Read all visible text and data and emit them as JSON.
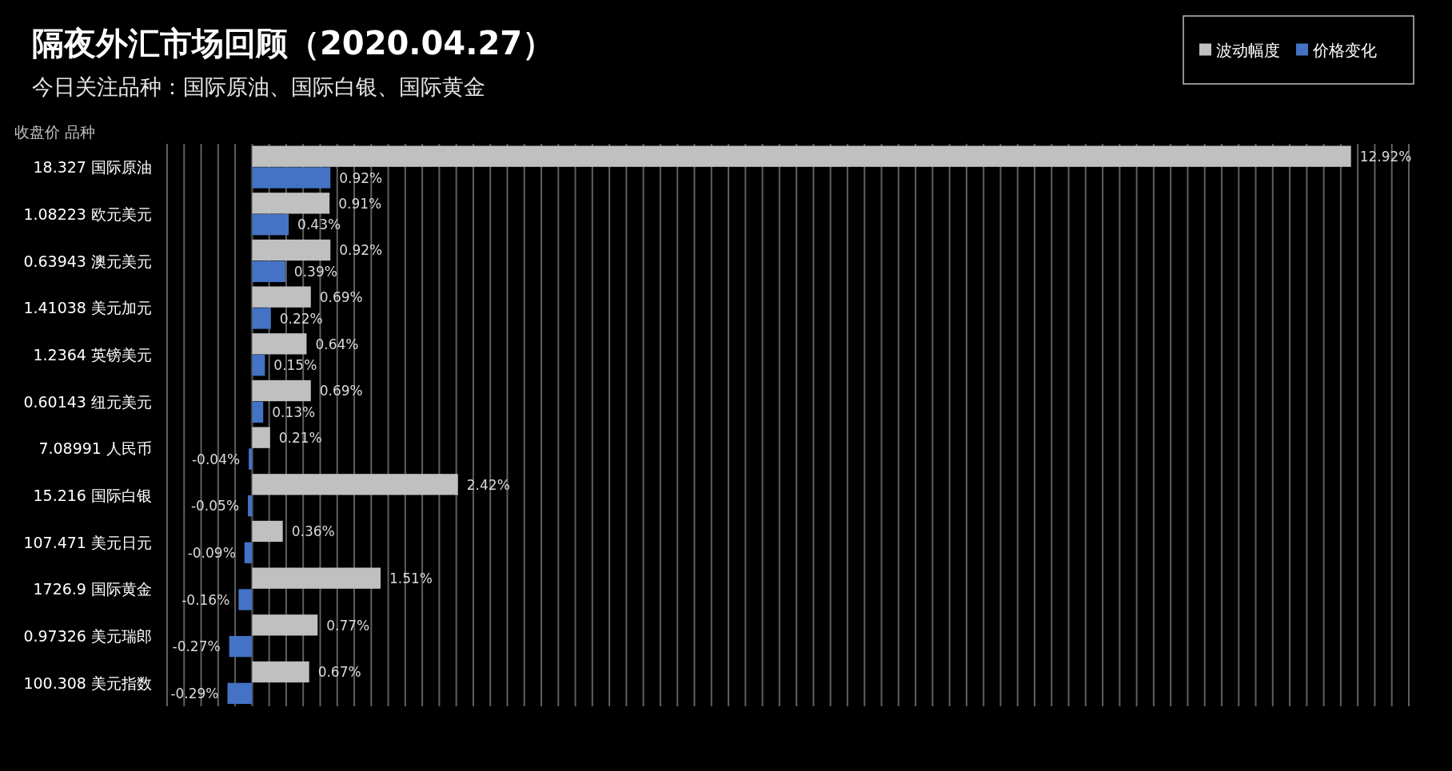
{
  "chart_data": {
    "type": "bar",
    "orientation": "horizontal",
    "title": "隔夜外汇市场回顾（2020.04.27）",
    "subtitle": "今日关注品种：国际原油、国际白银、国际黄金",
    "ylabel": "收盘价  品种",
    "categories": [
      "18.327 国际原油",
      "1.08223 欧元美元",
      "0.63943 澳元美元",
      "1.41038 美元加元",
      "1.2364 英镑美元",
      "0.60143 纽元美元",
      "7.08991 人民币",
      "15.216 国际白银",
      "107.471 美元日元",
      "1726.9 国际黄金",
      "0.97326 美元瑞郎",
      "100.308 美元指数"
    ],
    "series": [
      {
        "name": "波动幅度",
        "color": "#c0c0c0",
        "values": [
          12.92,
          0.91,
          0.92,
          0.69,
          0.64,
          0.69,
          0.21,
          2.42,
          0.36,
          1.51,
          0.77,
          0.67
        ],
        "value_labels": [
          "12.92%",
          "0.91%",
          "0.92%",
          "0.69%",
          "0.64%",
          "0.69%",
          "0.21%",
          "2.42%",
          "0.36%",
          "1.51%",
          "0.77%",
          "0.67%"
        ]
      },
      {
        "name": "价格变化",
        "color": "#4472c4",
        "values": [
          0.92,
          0.43,
          0.39,
          0.22,
          0.15,
          0.13,
          -0.04,
          -0.05,
          -0.09,
          -0.16,
          -0.27,
          -0.29
        ],
        "value_labels": [
          "0.92%",
          "0.43%",
          "0.39%",
          "0.22%",
          "0.15%",
          "0.13%",
          "-0.04%",
          "-0.05%",
          "-0.09%",
          "-0.16%",
          "-0.27%",
          "-0.29%"
        ]
      }
    ],
    "xlim": [
      -1.0,
      13.6
    ],
    "xticks": [
      {
        "value": -1.0,
        "label": null
      },
      {
        "value": -0.8,
        "label": null
      },
      {
        "value": -0.6,
        "label": null
      },
      {
        "value": -0.4,
        "label": null
      },
      {
        "value": -0.2,
        "label": null
      },
      {
        "value": 0,
        "label": null
      },
      {
        "value": 0.2,
        "label": null
      },
      {
        "value": 0.4,
        "label": null
      },
      {
        "value": 0.6,
        "label": null
      },
      {
        "value": 0.8,
        "label": null
      },
      {
        "value": 1.0,
        "label": null
      },
      {
        "value": 1.2,
        "label": null
      },
      {
        "value": 1.4,
        "label": null
      },
      {
        "value": 1.6,
        "label": null
      },
      {
        "value": 1.8,
        "label": null
      },
      {
        "value": 2.0,
        "label": null
      },
      {
        "value": 2.2,
        "label": null
      },
      {
        "value": 2.4,
        "label": null
      },
      {
        "value": 2.6,
        "label": null
      },
      {
        "value": 2.8,
        "label": null
      },
      {
        "value": 3.0,
        "label": null
      },
      {
        "value": 3.2,
        "label": null
      },
      {
        "value": 3.4,
        "label": null
      },
      {
        "value": 3.6,
        "label": null
      },
      {
        "value": 3.8,
        "label": null
      },
      {
        "value": 4.0,
        "label": null
      },
      {
        "value": 4.2,
        "label": null
      },
      {
        "value": 4.4,
        "label": null
      },
      {
        "value": 4.6,
        "label": null
      },
      {
        "value": 4.8,
        "label": null
      },
      {
        "value": 5.0,
        "label": null
      },
      {
        "value": 5.2,
        "label": null
      },
      {
        "value": 5.4,
        "label": null
      },
      {
        "value": 5.6,
        "label": null
      },
      {
        "value": 5.8,
        "label": null
      },
      {
        "value": 6.0,
        "label": null
      },
      {
        "value": 6.2,
        "label": null
      },
      {
        "value": 6.4,
        "label": null
      },
      {
        "value": 6.6,
        "label": null
      },
      {
        "value": 6.8,
        "label": null
      },
      {
        "value": 7.0,
        "label": null
      },
      {
        "value": 7.2,
        "label": null
      },
      {
        "value": 7.4,
        "label": null
      },
      {
        "value": 7.6,
        "label": null
      },
      {
        "value": 7.8,
        "label": null
      },
      {
        "value": 8.0,
        "label": null
      },
      {
        "value": 8.2,
        "label": null
      },
      {
        "value": 8.4,
        "label": null
      },
      {
        "value": 8.6,
        "label": null
      },
      {
        "value": 8.8,
        "label": null
      },
      {
        "value": 9.0,
        "label": null
      },
      {
        "value": 9.2,
        "label": null
      },
      {
        "value": 9.4,
        "label": null
      },
      {
        "value": 9.6,
        "label": null
      },
      {
        "value": 9.8,
        "label": null
      },
      {
        "value": 10.0,
        "label": null
      },
      {
        "value": 10.2,
        "label": null
      },
      {
        "value": 10.4,
        "label": null
      },
      {
        "value": 10.6,
        "label": null
      },
      {
        "value": 10.8,
        "label": null
      },
      {
        "value": 11.0,
        "label": null
      },
      {
        "value": 11.2,
        "label": null
      },
      {
        "value": 11.4,
        "label": null
      },
      {
        "value": 11.6,
        "label": null
      },
      {
        "value": 11.8,
        "label": null
      },
      {
        "value": 12.0,
        "label": null
      },
      {
        "value": 12.2,
        "label": null
      },
      {
        "value": 12.4,
        "label": null
      },
      {
        "value": 12.6,
        "label": null
      },
      {
        "value": 12.8,
        "label": null
      },
      {
        "value": 13.0,
        "label": null
      },
      {
        "value": 13.2,
        "label": null
      },
      {
        "value": 13.4,
        "label": null
      },
      {
        "value": 13.6,
        "label": null
      }
    ],
    "grid": "x",
    "legend": "top right"
  }
}
